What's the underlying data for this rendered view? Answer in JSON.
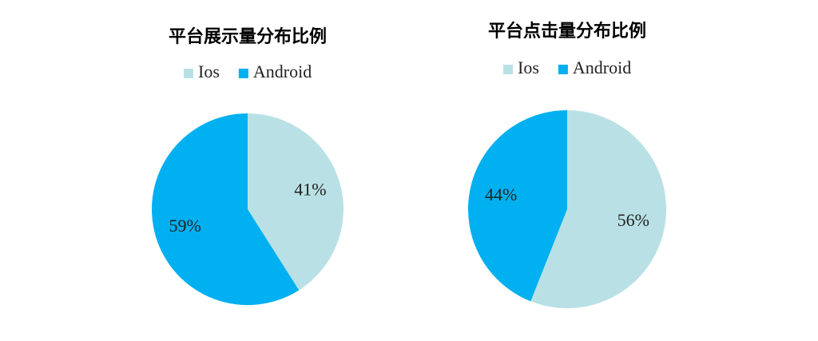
{
  "chart_data": [
    {
      "type": "pie",
      "title": "平台展示量分布比例",
      "categories": [
        "Ios",
        "Android"
      ],
      "values": [
        41,
        59
      ],
      "value_labels": [
        "41%",
        "59%"
      ],
      "colors": [
        "#b9e1e5",
        "#00b0f0"
      ],
      "legend": "top"
    },
    {
      "type": "pie",
      "title": "平台点击量分布比例",
      "categories": [
        "Ios",
        "Android"
      ],
      "values": [
        56,
        44
      ],
      "value_labels": [
        "56%",
        "44%"
      ],
      "colors": [
        "#b9e1e5",
        "#00b0f0"
      ],
      "legend": "top"
    }
  ]
}
